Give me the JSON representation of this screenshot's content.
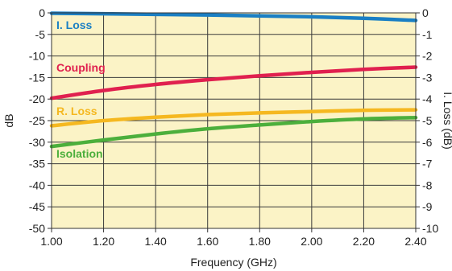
{
  "chart_data": {
    "type": "line",
    "xlabel": "Frequency (GHz)",
    "ylabel": "dB",
    "y2label": "I. Loss (dB)",
    "xlim": [
      1.0,
      2.4
    ],
    "ylim": [
      -50,
      0
    ],
    "y2lim": [
      -10,
      0
    ],
    "x_ticks": [
      "1.00",
      "1.20",
      "1.40",
      "1.60",
      "1.80",
      "2.00",
      "2.20",
      "2.40"
    ],
    "y_ticks": [
      "0",
      "-5",
      "-10",
      "-15",
      "-20",
      "-25",
      "-30",
      "-35",
      "-40",
      "-45",
      "-50"
    ],
    "y2_ticks": [
      "0",
      "-1",
      "-2",
      "-3",
      "-4",
      "-5",
      "-6",
      "-7",
      "-8",
      "-9",
      "-10"
    ],
    "grid": true,
    "background_color": "#fbf3c6",
    "series": [
      {
        "name": "I. Loss",
        "axis": "right",
        "color": "#1a7fc4",
        "x": [
          1.0,
          1.2,
          1.4,
          1.6,
          1.8,
          2.0,
          2.2,
          2.4
        ],
        "values": [
          -0.02,
          -0.04,
          -0.07,
          -0.1,
          -0.14,
          -0.18,
          -0.25,
          -0.35
        ]
      },
      {
        "name": "Coupling",
        "axis": "left",
        "color": "#e0204f",
        "x": [
          1.0,
          1.2,
          1.4,
          1.6,
          1.8,
          2.0,
          2.2,
          2.4
        ],
        "values": [
          -19.8,
          -18.0,
          -16.6,
          -15.5,
          -14.6,
          -13.8,
          -13.1,
          -12.6
        ]
      },
      {
        "name": "R. Loss",
        "axis": "left",
        "color": "#f5b820",
        "x": [
          1.0,
          1.2,
          1.4,
          1.6,
          1.8,
          2.0,
          2.2,
          2.4
        ],
        "values": [
          -26.2,
          -25.0,
          -24.2,
          -23.6,
          -23.2,
          -22.9,
          -22.6,
          -22.5
        ]
      },
      {
        "name": "Isolation",
        "axis": "left",
        "color": "#4caf3c",
        "x": [
          1.0,
          1.2,
          1.4,
          1.6,
          1.8,
          2.0,
          2.2,
          2.4
        ],
        "values": [
          -31.0,
          -29.5,
          -28.1,
          -26.9,
          -26.0,
          -25.2,
          -24.6,
          -24.3
        ]
      }
    ]
  }
}
